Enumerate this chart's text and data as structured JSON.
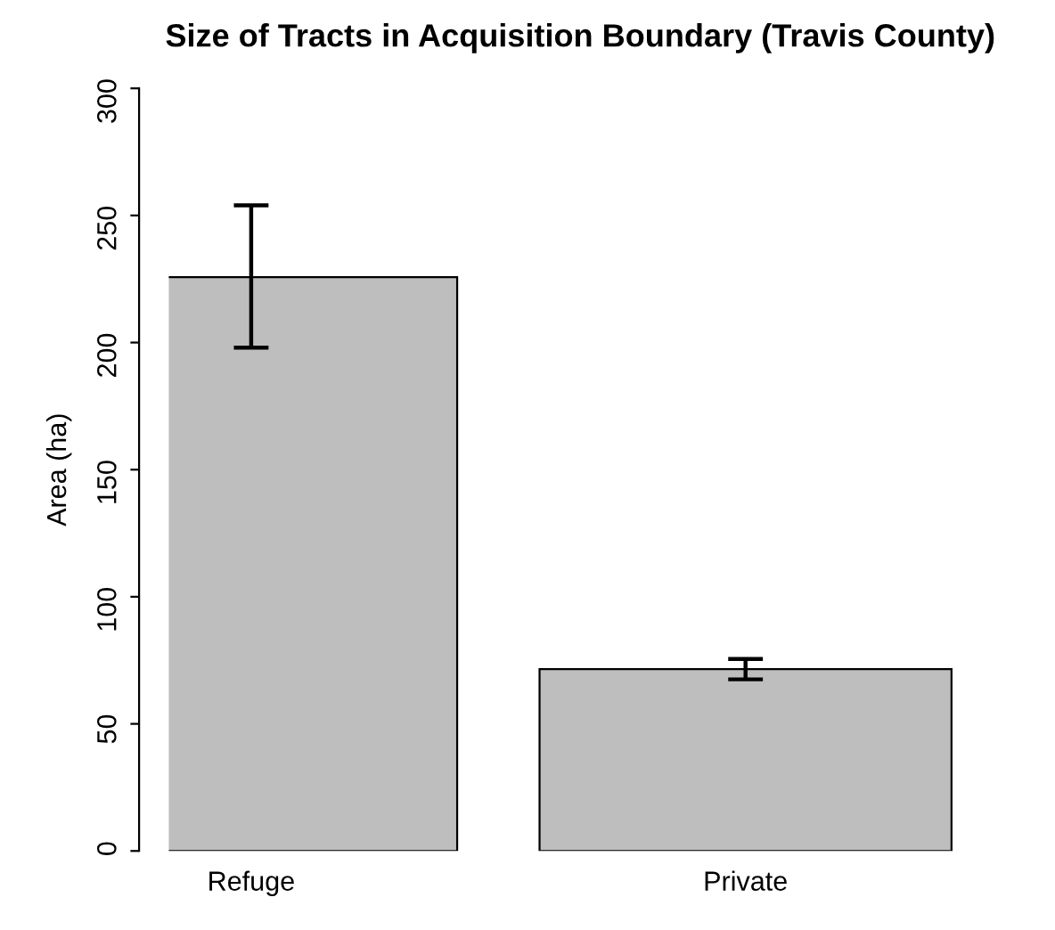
{
  "chart_data": {
    "type": "bar",
    "title": "Size of Tracts in Acquisition Boundary (Travis County)",
    "ylabel": "Area (ha)",
    "categories": [
      "Refuge",
      "Private"
    ],
    "values": [
      225.7,
      71.5
    ],
    "errors": [
      [
        198,
        254
      ],
      [
        67.5,
        75.5
      ]
    ],
    "color": "#bebebe",
    "ylim": [
      0,
      300
    ],
    "yticks": [
      0,
      50,
      100,
      150,
      200,
      250,
      300
    ],
    "grid": false
  }
}
